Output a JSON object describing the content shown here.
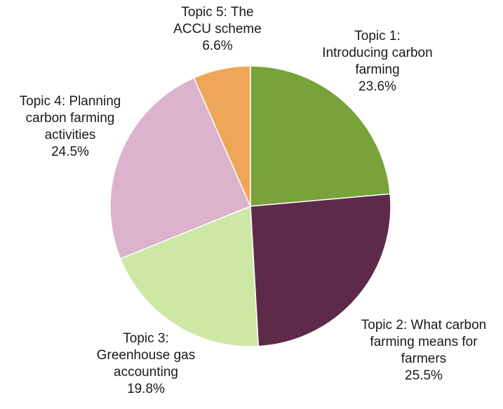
{
  "chart_data": {
    "type": "pie",
    "slices": [
      {
        "label_lines": [
          "Topic 1:",
          "Introducing carbon",
          "farming"
        ],
        "value": 23.6,
        "value_label": "23.6%",
        "color": "#78a23a"
      },
      {
        "label_lines": [
          "Topic 2: What carbon",
          "farming means for",
          "farmers"
        ],
        "value": 25.5,
        "value_label": "25.5%",
        "color": "#5e2a4a"
      },
      {
        "label_lines": [
          "Topic 3:",
          "Greenhouse gas",
          "accounting"
        ],
        "value": 19.8,
        "value_label": "19.8%",
        "color": "#cde8a4"
      },
      {
        "label_lines": [
          "Topic 4: Planning",
          "carbon farming",
          "activities"
        ],
        "value": 24.5,
        "value_label": "24.5%",
        "color": "#dbb3cc"
      },
      {
        "label_lines": [
          "Topic 5: The",
          "ACCU scheme"
        ],
        "value": 6.6,
        "value_label": "6.6%",
        "color": "#eea658"
      }
    ],
    "start": "12 o'clock",
    "direction": "clockwise",
    "legend": "none"
  }
}
